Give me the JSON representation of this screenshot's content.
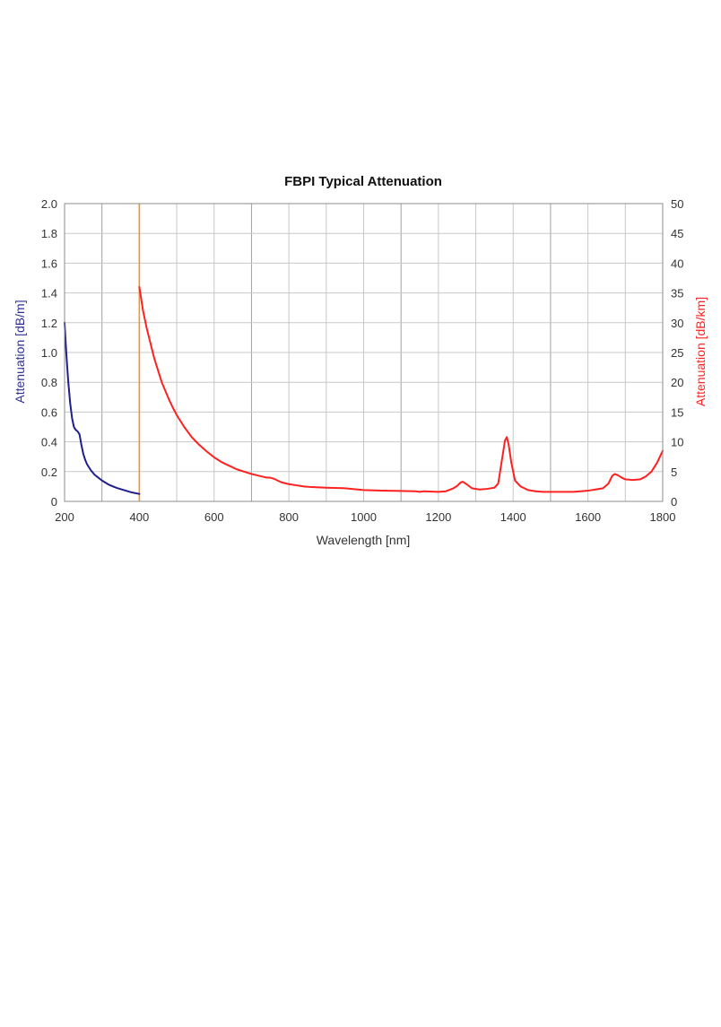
{
  "chart_data": {
    "type": "line",
    "title": "FBPI Typical Attenuation",
    "xlabel": "Wavelength [nm]",
    "ylabel_left": "Attenuation [dB/m]",
    "ylabel_right": "Attenuation [dB/km]",
    "xlim": [
      200,
      1800
    ],
    "ylim_left": [
      0,
      2.0
    ],
    "ylim_right": [
      0,
      50
    ],
    "x_ticks": [
      "200",
      "400",
      "600",
      "800",
      "1000",
      "1200",
      "1400",
      "1600",
      "1800"
    ],
    "y_left_ticks": [
      "0",
      "0.2",
      "0.4",
      "0.6",
      "0.8",
      "1.0",
      "1.2",
      "1.4",
      "1.6",
      "1.8",
      "2.0"
    ],
    "y_right_ticks": [
      "0",
      "5",
      "10",
      "15",
      "20",
      "25",
      "30",
      "35",
      "40",
      "45",
      "50"
    ],
    "grid": true,
    "colors": {
      "left_axis_label": "#2e3192",
      "right_axis_label": "#ff2020",
      "divider": "#f7941d",
      "grid": "#c8c8c8"
    },
    "divider_x": 400,
    "series": [
      {
        "axis": "left",
        "color": "#1f1f8f",
        "points": [
          [
            200,
            1.2
          ],
          [
            205,
            0.98
          ],
          [
            210,
            0.8
          ],
          [
            215,
            0.66
          ],
          [
            220,
            0.56
          ],
          [
            225,
            0.5
          ],
          [
            230,
            0.48
          ],
          [
            235,
            0.47
          ],
          [
            240,
            0.45
          ],
          [
            245,
            0.38
          ],
          [
            250,
            0.32
          ],
          [
            255,
            0.28
          ],
          [
            260,
            0.25
          ],
          [
            270,
            0.21
          ],
          [
            280,
            0.18
          ],
          [
            290,
            0.16
          ],
          [
            300,
            0.14
          ],
          [
            320,
            0.11
          ],
          [
            340,
            0.09
          ],
          [
            360,
            0.075
          ],
          [
            380,
            0.06
          ],
          [
            400,
            0.05
          ]
        ]
      },
      {
        "axis": "right",
        "color": "#ff2020",
        "points": [
          [
            400,
            36
          ],
          [
            405,
            34
          ],
          [
            410,
            32
          ],
          [
            420,
            29
          ],
          [
            430,
            26.5
          ],
          [
            440,
            24
          ],
          [
            450,
            22
          ],
          [
            460,
            20
          ],
          [
            470,
            18.5
          ],
          [
            480,
            17
          ],
          [
            490,
            15.7
          ],
          [
            500,
            14.5
          ],
          [
            520,
            12.5
          ],
          [
            540,
            10.8
          ],
          [
            560,
            9.5
          ],
          [
            580,
            8.4
          ],
          [
            600,
            7.4
          ],
          [
            620,
            6.6
          ],
          [
            640,
            6
          ],
          [
            660,
            5.4
          ],
          [
            680,
            5
          ],
          [
            700,
            4.6
          ],
          [
            720,
            4.3
          ],
          [
            740,
            4
          ],
          [
            750,
            4
          ],
          [
            760,
            3.8
          ],
          [
            780,
            3.2
          ],
          [
            800,
            2.9
          ],
          [
            820,
            2.7
          ],
          [
            840,
            2.5
          ],
          [
            860,
            2.4
          ],
          [
            880,
            2.35
          ],
          [
            900,
            2.3
          ],
          [
            950,
            2.2
          ],
          [
            1000,
            1.9
          ],
          [
            1050,
            1.8
          ],
          [
            1100,
            1.75
          ],
          [
            1140,
            1.7
          ],
          [
            1150,
            1.6
          ],
          [
            1160,
            1.7
          ],
          [
            1200,
            1.6
          ],
          [
            1220,
            1.7
          ],
          [
            1240,
            2.2
          ],
          [
            1250,
            2.6
          ],
          [
            1260,
            3.2
          ],
          [
            1265,
            3.3
          ],
          [
            1275,
            2.9
          ],
          [
            1290,
            2.2
          ],
          [
            1310,
            2.0
          ],
          [
            1330,
            2.1
          ],
          [
            1350,
            2.3
          ],
          [
            1360,
            3.0
          ],
          [
            1370,
            7
          ],
          [
            1378,
            10.2
          ],
          [
            1383,
            10.8
          ],
          [
            1388,
            9.5
          ],
          [
            1395,
            6.5
          ],
          [
            1405,
            3.5
          ],
          [
            1420,
            2.5
          ],
          [
            1440,
            1.9
          ],
          [
            1460,
            1.7
          ],
          [
            1480,
            1.6
          ],
          [
            1520,
            1.6
          ],
          [
            1560,
            1.6
          ],
          [
            1580,
            1.7
          ],
          [
            1600,
            1.8
          ],
          [
            1620,
            2.0
          ],
          [
            1640,
            2.2
          ],
          [
            1655,
            3.0
          ],
          [
            1665,
            4.3
          ],
          [
            1672,
            4.6
          ],
          [
            1680,
            4.4
          ],
          [
            1690,
            4.0
          ],
          [
            1700,
            3.7
          ],
          [
            1720,
            3.6
          ],
          [
            1740,
            3.7
          ],
          [
            1755,
            4.2
          ],
          [
            1770,
            5.0
          ],
          [
            1785,
            6.5
          ],
          [
            1800,
            8.5
          ]
        ]
      }
    ]
  }
}
